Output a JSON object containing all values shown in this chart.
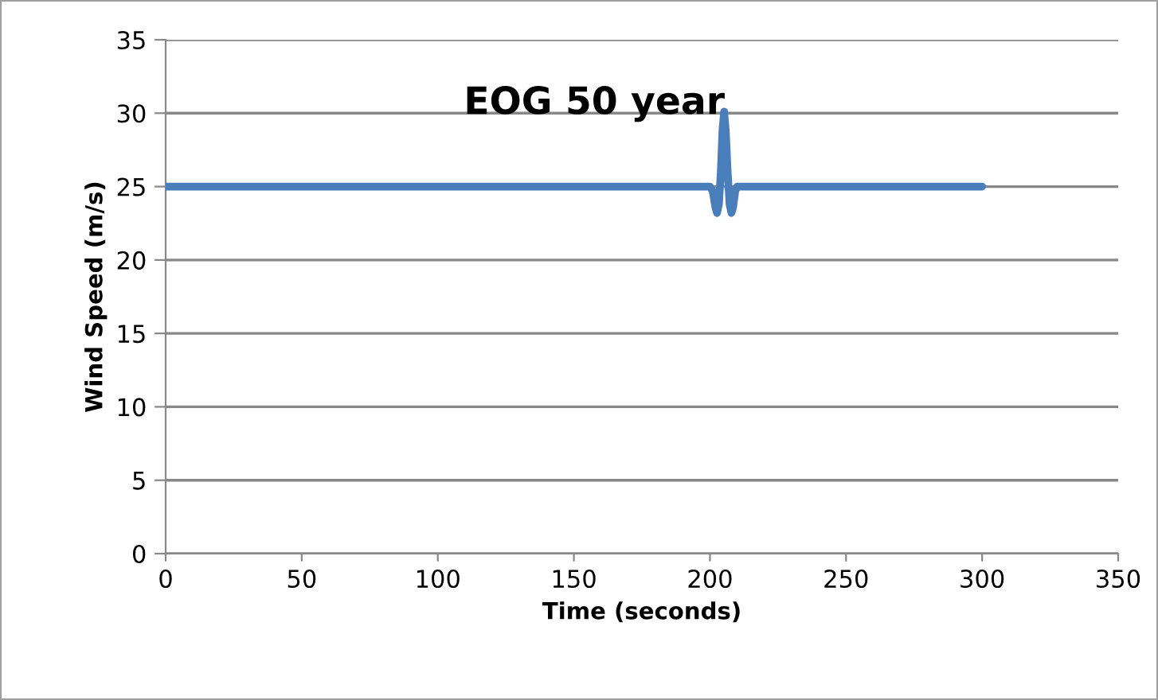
{
  "chart_data": {
    "type": "line",
    "title": "EOG 50 year",
    "xlabel": "Time (seconds)",
    "ylabel": "Wind Speed (m/s)",
    "xlim": [
      0,
      350
    ],
    "xticks": [
      0,
      50,
      100,
      150,
      200,
      250,
      300,
      350
    ],
    "ylim": [
      0,
      35
    ],
    "yticks": [
      0,
      5,
      10,
      15,
      20,
      25,
      30,
      35
    ],
    "grid": "y",
    "marker": "none",
    "line_style": "solid",
    "series": [
      {
        "color": "#4a7ebb",
        "x": [
          0,
          200,
          201,
          202,
          202.6,
          203.3,
          204,
          204.6,
          205.2,
          205.8,
          206.5,
          207.2,
          207.9,
          208.5,
          209.3,
          210,
          300
        ],
        "values": [
          25,
          25,
          24.7,
          23.6,
          23.2,
          23.8,
          26,
          28.8,
          30.1,
          28.8,
          26,
          23.8,
          23.2,
          23.6,
          24.7,
          25,
          25
        ]
      }
    ]
  }
}
